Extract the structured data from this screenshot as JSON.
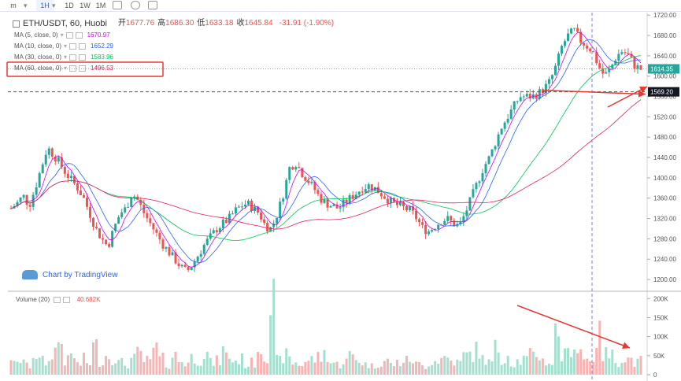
{
  "toolbar": {
    "items": [
      "m",
      "1H",
      "1D",
      "1W",
      "1M"
    ],
    "active": "1H"
  },
  "header": {
    "symbol": "ETH/USDT, 60, Huobi",
    "open_label": "开",
    "open": "1677.76",
    "high_label": "高",
    "high": "1686.30",
    "low_label": "低",
    "low": "1633.18",
    "close_label": "收",
    "close": "1645.84",
    "change": "-31.91 (-1.90%)"
  },
  "ma_legend": [
    {
      "label": "MA (5, close, 0)",
      "value": "1670.97",
      "color": "#d500f9"
    },
    {
      "label": "MA (10, close, 0)",
      "value": "1652.29",
      "color": "#2962ff"
    },
    {
      "label": "MA (30, close, 0)",
      "value": "1583.96",
      "color": "#00c853"
    },
    {
      "label": "MA (60, close, 0)",
      "value": "1496.53",
      "color": "#e91e63"
    }
  ],
  "volume_legend": {
    "label": "Volume (20)",
    "value": "40.682K"
  },
  "branding": "Chart by TradingView",
  "colors": {
    "up": "#26a69a",
    "down": "#ef5350",
    "vol_up": "#a6dfcf",
    "vol_down": "#f7b4b4",
    "annotation": "#e53935",
    "last_price_bg": "#26a69a"
  },
  "chart_data": {
    "type": "candlestick",
    "price_axis": {
      "ticks": [
        "1720.00",
        "1680.00",
        "1640.00",
        "1600.00",
        "1560.00",
        "1520.00",
        "1480.00",
        "1440.00",
        "1400.00",
        "1360.00",
        "1320.00",
        "1280.00",
        "1240.00",
        "1200.00"
      ],
      "range": [
        1180,
        1725
      ]
    },
    "volume_axis": {
      "ticks": [
        "200K",
        "150K",
        "100K",
        "50K",
        "0"
      ],
      "range": [
        0,
        215000
      ]
    },
    "last_price_label": "1614.35",
    "marked_level_label": "1569.20",
    "marked_level": 1569.2,
    "last_price": 1614.35,
    "price_path": [
      1340,
      1350,
      1365,
      1345,
      1380,
      1420,
      1460,
      1445,
      1430,
      1410,
      1395,
      1380,
      1360,
      1330,
      1300,
      1280,
      1265,
      1300,
      1330,
      1340,
      1370,
      1355,
      1330,
      1310,
      1290,
      1270,
      1255,
      1240,
      1225,
      1215,
      1230,
      1250,
      1270,
      1285,
      1300,
      1310,
      1320,
      1335,
      1345,
      1350,
      1340,
      1330,
      1305,
      1300,
      1330,
      1370,
      1420,
      1430,
      1410,
      1395,
      1380,
      1360,
      1350,
      1345,
      1340,
      1350,
      1360,
      1370,
      1380,
      1385,
      1380,
      1370,
      1360,
      1350,
      1345,
      1340,
      1335,
      1320,
      1300,
      1295,
      1305,
      1315,
      1320,
      1310,
      1305,
      1330,
      1360,
      1390,
      1420,
      1440,
      1470,
      1500,
      1520,
      1540,
      1560,
      1560,
      1560,
      1565,
      1575,
      1590,
      1620,
      1660,
      1680,
      1690,
      1670,
      1660,
      1650,
      1620,
      1600,
      1615,
      1640,
      1650,
      1640,
      1620,
      1614
    ],
    "volume_profile": [
      55,
      30,
      45,
      25,
      60,
      40,
      35,
      70,
      95,
      40,
      55,
      30,
      45,
      35,
      80,
      40,
      55,
      50,
      35,
      30,
      45,
      60,
      40,
      35,
      75,
      45,
      30,
      55,
      40,
      35,
      50,
      45,
      60,
      35,
      40,
      70,
      55,
      40,
      45,
      30,
      35,
      80,
      60,
      210,
      40,
      55,
      45,
      35,
      30,
      40,
      45,
      50,
      60,
      35,
      30,
      40,
      55,
      45,
      35,
      30,
      25,
      35,
      40,
      30,
      35,
      40,
      45,
      30,
      25,
      35,
      40,
      45,
      50,
      40,
      35,
      55,
      60,
      70,
      45,
      35,
      75,
      40,
      60,
      35,
      40,
      45,
      55,
      60,
      40,
      35,
      120,
      55,
      60,
      90,
      75,
      45,
      50,
      110,
      60,
      55,
      40,
      50,
      45,
      35,
      40
    ]
  }
}
